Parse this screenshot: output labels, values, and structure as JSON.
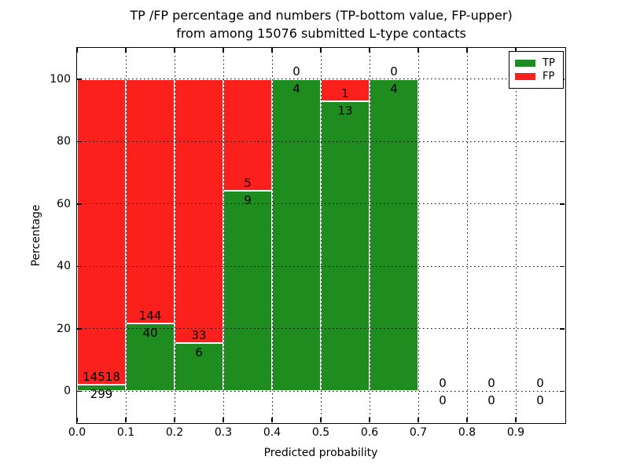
{
  "figure": {
    "title_line1": "TP /FP percentage and numbers (TP-bottom value, FP-upper)",
    "title_line2": "from among 15076 submitted L-type contacts"
  },
  "chart_data": {
    "type": "bar",
    "stacked": true,
    "normalized_to_percent": true,
    "title": "TP /FP percentage and numbers (TP-bottom value, FP-upper)\nfrom among 15076 submitted L-type contacts",
    "total_submitted": 15076,
    "xlabel": "Predicted probability",
    "ylabel": "Percentage",
    "bin_width": 0.1,
    "bin_starts": [
      0.0,
      0.1,
      0.2,
      0.3,
      0.4,
      0.5,
      0.6,
      0.7,
      0.8,
      0.9
    ],
    "series": [
      {
        "name": "TP",
        "color": "#1e8c1e",
        "counts": [
          299,
          40,
          6,
          9,
          4,
          13,
          4,
          0,
          0,
          0
        ]
      },
      {
        "name": "FP",
        "color": "#fc201d",
        "counts": [
          14518,
          144,
          33,
          5,
          0,
          1,
          0,
          0,
          0,
          0
        ]
      }
    ],
    "annotation_rule": "FP count printed above green/red boundary, TP count printed below it",
    "xticks": [
      "0.0",
      "0.1",
      "0.2",
      "0.3",
      "0.4",
      "0.5",
      "0.6",
      "0.7",
      "0.8",
      "0.9"
    ],
    "yticks": [
      "0",
      "20",
      "40",
      "60",
      "80",
      "100"
    ],
    "xlim": [
      0.0,
      1.0
    ],
    "ylim": [
      -10,
      110
    ],
    "grid": "dotted",
    "legend": {
      "position": "upper right",
      "entries": [
        {
          "label": "TP",
          "color": "#1e8c1e"
        },
        {
          "label": "FP",
          "color": "#fc201d"
        }
      ]
    }
  }
}
